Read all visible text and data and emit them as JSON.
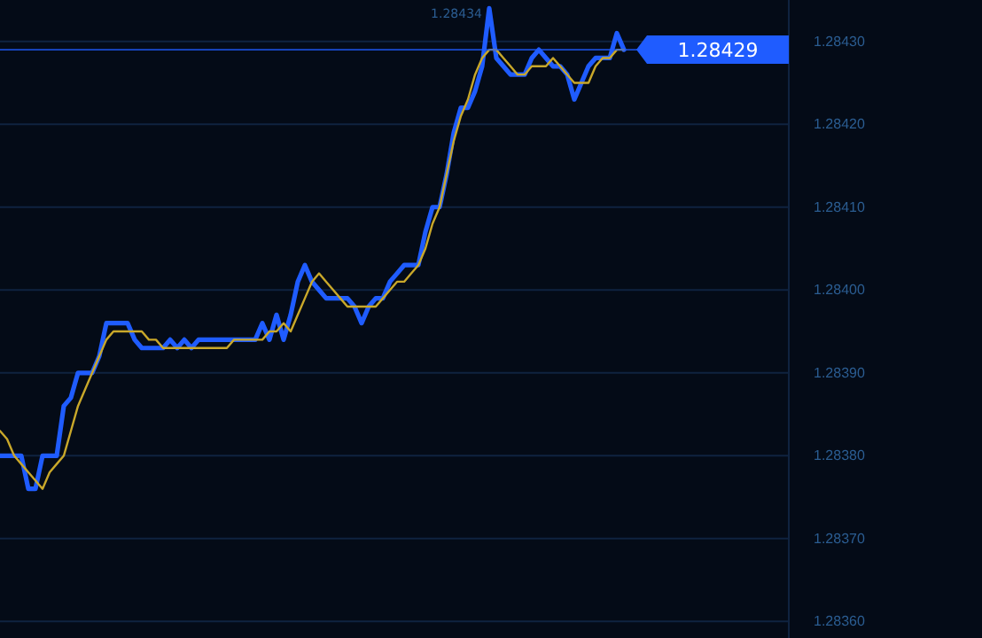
{
  "chart_data": {
    "type": "line",
    "categories": [
      null,
      null,
      null,
      null,
      null,
      null,
      null,
      null,
      null,
      null,
      null,
      null,
      null,
      null,
      null,
      null,
      null,
      null,
      null,
      null,
      null,
      null,
      null,
      null,
      null,
      null,
      null,
      null,
      null,
      null,
      null,
      null,
      null,
      null,
      null,
      null,
      null,
      null,
      null,
      null,
      null,
      null,
      null,
      null,
      null,
      null,
      null,
      null,
      null,
      null,
      null,
      null,
      null,
      null,
      null,
      null,
      null,
      null,
      null,
      null,
      null,
      null,
      null,
      null,
      null,
      null,
      null,
      null,
      null,
      null,
      null,
      null,
      null,
      null,
      null,
      null,
      null,
      null,
      null,
      null,
      null,
      null,
      null,
      null,
      null,
      null,
      null,
      null,
      null
    ],
    "series": [
      {
        "color": "#1f5cff",
        "values": [
          1.2838,
          1.2838,
          1.2838,
          1.2838,
          1.28376,
          1.28376,
          1.2838,
          1.2838,
          1.2838,
          1.28386,
          1.28387,
          1.2839,
          1.2839,
          1.2839,
          1.28392,
          1.28396,
          1.28396,
          1.28396,
          1.28396,
          1.28394,
          1.28393,
          1.28393,
          1.28393,
          1.28393,
          1.28394,
          1.28393,
          1.28394,
          1.28393,
          1.28394,
          1.28394,
          1.28394,
          1.28394,
          1.28394,
          1.28394,
          1.28394,
          1.28394,
          1.28394,
          1.28396,
          1.28394,
          1.28397,
          1.28394,
          1.28397,
          1.28401,
          1.28403,
          1.28401,
          1.284,
          1.28399,
          1.28399,
          1.28399,
          1.28399,
          1.28398,
          1.28396,
          1.28398,
          1.28399,
          1.28399,
          1.28401,
          1.28402,
          1.28403,
          1.28403,
          1.28403,
          1.28407,
          1.2841,
          1.2841,
          1.28414,
          1.28419,
          1.28422,
          1.28422,
          1.28424,
          1.28427,
          1.28434,
          1.28428,
          1.28427,
          1.28426,
          1.28426,
          1.28426,
          1.28428,
          1.28429,
          1.28428,
          1.28427,
          1.28427,
          1.28426,
          1.28423,
          1.28425,
          1.28427,
          1.28428,
          1.28428,
          1.28428,
          1.28431,
          1.28429
        ]
      },
      {
        "color": "#c9a82a",
        "values": [
          1.28383,
          1.28382,
          1.2838,
          1.28379,
          1.28378,
          1.28377,
          1.28376,
          1.28378,
          1.28379,
          1.2838,
          1.28383,
          1.28386,
          1.28388,
          1.2839,
          1.28392,
          1.28394,
          1.28395,
          1.28395,
          1.28395,
          1.28395,
          1.28395,
          1.28394,
          1.28394,
          1.28393,
          1.28393,
          1.28393,
          1.28393,
          1.28393,
          1.28393,
          1.28393,
          1.28393,
          1.28393,
          1.28393,
          1.28394,
          1.28394,
          1.28394,
          1.28394,
          1.28394,
          1.28395,
          1.28395,
          1.28396,
          1.28395,
          1.28397,
          1.28399,
          1.28401,
          1.28402,
          1.28401,
          1.284,
          1.28399,
          1.28398,
          1.28398,
          1.28398,
          1.28398,
          1.28398,
          1.28399,
          1.284,
          1.28401,
          1.28401,
          1.28402,
          1.28403,
          1.28405,
          1.28408,
          1.2841,
          1.28414,
          1.28418,
          1.28421,
          1.28423,
          1.28426,
          1.28428,
          1.28429,
          1.28429,
          1.28428,
          1.28427,
          1.28426,
          1.28426,
          1.28427,
          1.28427,
          1.28427,
          1.28428,
          1.28427,
          1.28426,
          1.28425,
          1.28425,
          1.28425,
          1.28427,
          1.28428,
          1.28428,
          1.28429,
          1.28429
        ]
      }
    ],
    "ylim": [
      1.28358,
      1.28435
    ],
    "yticks": [
      {
        "value": 1.2836,
        "label": "1.28360"
      },
      {
        "value": 1.2837,
        "label": "1.28370"
      },
      {
        "value": 1.2838,
        "label": "1.28380"
      },
      {
        "value": 1.2839,
        "label": "1.28390"
      },
      {
        "value": 1.284,
        "label": "1.28400"
      },
      {
        "value": 1.2841,
        "label": "1.28410"
      },
      {
        "value": 1.2842,
        "label": "1.28420"
      },
      {
        "value": 1.2843,
        "label": "1.28430"
      }
    ],
    "grid": "y",
    "ref_lines": [
      {
        "axis": "y",
        "value": 1.28429,
        "label": "1.28429",
        "color": "#1f5cff"
      }
    ],
    "annotations": [
      "1.28434"
    ]
  }
}
